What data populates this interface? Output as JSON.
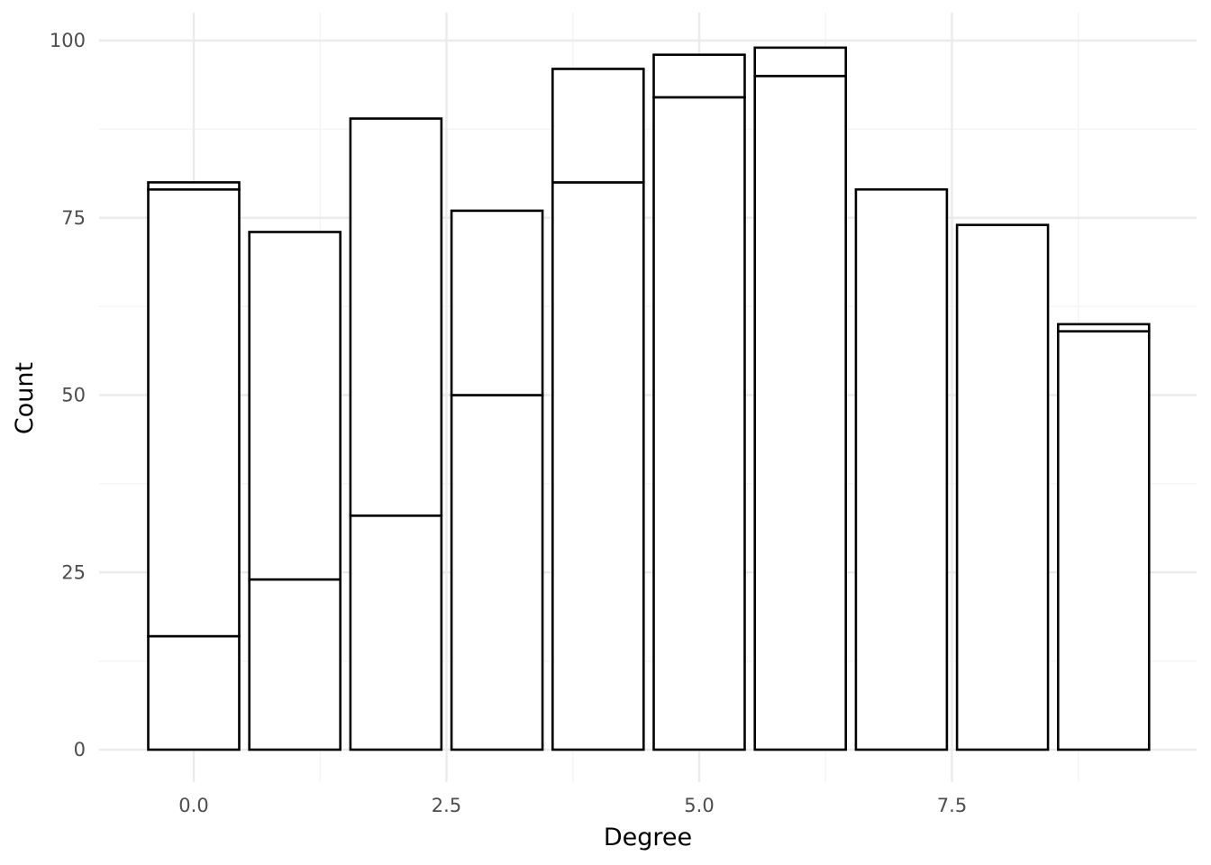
{
  "chart_data": {
    "type": "bar",
    "stacked": true,
    "x": [
      0,
      1,
      2,
      3,
      4,
      5,
      6,
      7,
      8,
      9
    ],
    "segments": [
      [
        16,
        79,
        80
      ],
      [
        24,
        73
      ],
      [
        33,
        89
      ],
      [
        50,
        76
      ],
      [
        80,
        96
      ],
      [
        92,
        98
      ],
      [
        95,
        99
      ],
      [
        79
      ],
      [
        74
      ],
      [
        59,
        60
      ]
    ],
    "totals": [
      80,
      73,
      89,
      76,
      96,
      98,
      99,
      79,
      74,
      60
    ],
    "xlabel": "Degree",
    "ylabel": "Count",
    "xlim": [
      -1,
      10
    ],
    "ylim": [
      0,
      100
    ],
    "xticks": [
      0,
      2.5,
      5,
      7.5
    ],
    "xtick_labels": [
      "0.0",
      "2.5",
      "5.0",
      "7.5"
    ],
    "yticks": [
      0,
      25,
      50,
      75,
      100
    ],
    "ytick_labels": [
      "0",
      "25",
      "50",
      "75",
      "100"
    ],
    "grid": true,
    "bar_fill": "#ffffff",
    "bar_outline": "#000000",
    "grid_color": "#ebebeb"
  }
}
